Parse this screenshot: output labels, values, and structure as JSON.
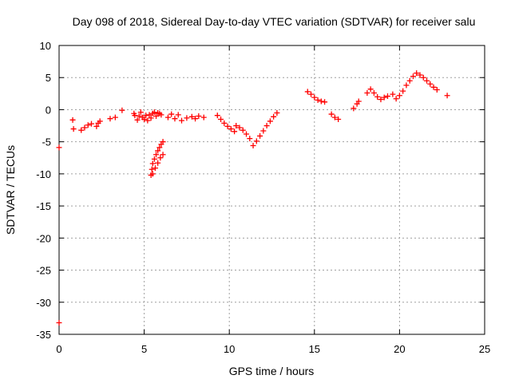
{
  "chart_data": {
    "type": "scatter",
    "title": "Day 098 of 2018, Sidereal Day-to-day VTEC variation (SDTVAR) for receiver salu",
    "xlabel": "GPS time / hours",
    "ylabel": "SDTVAR / TECUs",
    "xlim": [
      0,
      25
    ],
    "ylim": [
      -35,
      10
    ],
    "xticks": [
      "0",
      "5",
      "10",
      "15",
      "20",
      "25"
    ],
    "yticks": [
      "10",
      "5",
      "0",
      "-5",
      "-10",
      "-15",
      "-20",
      "-25",
      "-30",
      "-35"
    ],
    "grid": true,
    "marker": "plus",
    "color": "#ff0000",
    "series": [
      {
        "name": "SDTVAR",
        "points": [
          [
            0.0,
            -5.9
          ],
          [
            0.0,
            -33.2
          ],
          [
            0.8,
            -1.6
          ],
          [
            0.85,
            -3.0
          ],
          [
            1.3,
            -3.2
          ],
          [
            1.5,
            -2.8
          ],
          [
            1.7,
            -2.4
          ],
          [
            1.9,
            -2.2
          ],
          [
            2.2,
            -2.6
          ],
          [
            2.3,
            -2.1
          ],
          [
            2.4,
            -1.8
          ],
          [
            3.0,
            -1.4
          ],
          [
            3.3,
            -1.2
          ],
          [
            3.7,
            -0.1
          ],
          [
            4.4,
            -0.6
          ],
          [
            4.45,
            -0.9
          ],
          [
            4.6,
            -1.6
          ],
          [
            4.7,
            -1.0
          ],
          [
            4.8,
            -0.4
          ],
          [
            4.9,
            -1.2
          ],
          [
            5.0,
            -1.5
          ],
          [
            5.1,
            -0.9
          ],
          [
            5.2,
            -1.7
          ],
          [
            5.3,
            -0.8
          ],
          [
            5.4,
            -1.3
          ],
          [
            5.5,
            -0.6
          ],
          [
            5.6,
            -0.4
          ],
          [
            5.7,
            -1.0
          ],
          [
            5.8,
            -0.5
          ],
          [
            5.9,
            -0.6
          ],
          [
            6.0,
            -0.8
          ],
          [
            5.4,
            -10.2
          ],
          [
            5.45,
            -9.3
          ],
          [
            5.5,
            -8.4
          ],
          [
            5.6,
            -7.7
          ],
          [
            5.7,
            -7.0
          ],
          [
            5.8,
            -6.4
          ],
          [
            5.9,
            -5.9
          ],
          [
            6.0,
            -5.4
          ],
          [
            6.1,
            -5.0
          ],
          [
            5.5,
            -10.0
          ],
          [
            5.65,
            -9.1
          ],
          [
            5.8,
            -8.3
          ],
          [
            5.95,
            -7.5
          ],
          [
            6.1,
            -7.0
          ],
          [
            6.4,
            -1.2
          ],
          [
            6.6,
            -0.7
          ],
          [
            6.8,
            -1.4
          ],
          [
            7.0,
            -0.8
          ],
          [
            7.2,
            -1.7
          ],
          [
            7.5,
            -1.3
          ],
          [
            7.8,
            -1.1
          ],
          [
            8.0,
            -1.4
          ],
          [
            8.2,
            -1.0
          ],
          [
            8.5,
            -1.2
          ],
          [
            9.3,
            -0.9
          ],
          [
            9.5,
            -1.5
          ],
          [
            9.7,
            -2.1
          ],
          [
            9.9,
            -2.6
          ],
          [
            10.1,
            -3.0
          ],
          [
            10.3,
            -3.4
          ],
          [
            10.4,
            -2.5
          ],
          [
            10.6,
            -2.8
          ],
          [
            10.8,
            -3.2
          ],
          [
            11.0,
            -3.8
          ],
          [
            11.2,
            -4.5
          ],
          [
            11.4,
            -5.6
          ],
          [
            11.6,
            -4.9
          ],
          [
            11.8,
            -4.1
          ],
          [
            12.0,
            -3.3
          ],
          [
            12.2,
            -2.5
          ],
          [
            12.4,
            -1.8
          ],
          [
            12.6,
            -1.1
          ],
          [
            12.8,
            -0.5
          ],
          [
            14.6,
            2.8
          ],
          [
            14.8,
            2.4
          ],
          [
            15.0,
            1.9
          ],
          [
            15.2,
            1.5
          ],
          [
            15.4,
            1.3
          ],
          [
            15.6,
            1.2
          ],
          [
            16.0,
            -0.7
          ],
          [
            16.2,
            -1.2
          ],
          [
            16.4,
            -1.5
          ],
          [
            17.3,
            0.2
          ],
          [
            17.5,
            0.9
          ],
          [
            17.6,
            1.3
          ],
          [
            18.1,
            2.6
          ],
          [
            18.3,
            3.2
          ],
          [
            18.5,
            2.6
          ],
          [
            18.7,
            2.0
          ],
          [
            18.9,
            1.6
          ],
          [
            19.1,
            1.9
          ],
          [
            19.3,
            2.1
          ],
          [
            19.6,
            2.4
          ],
          [
            19.8,
            1.7
          ],
          [
            20.0,
            2.2
          ],
          [
            20.2,
            2.9
          ],
          [
            20.4,
            3.8
          ],
          [
            20.6,
            4.5
          ],
          [
            20.8,
            5.2
          ],
          [
            21.0,
            5.7
          ],
          [
            21.2,
            5.4
          ],
          [
            21.4,
            5.0
          ],
          [
            21.6,
            4.5
          ],
          [
            21.8,
            4.0
          ],
          [
            22.0,
            3.5
          ],
          [
            22.2,
            3.1
          ],
          [
            22.8,
            2.2
          ]
        ]
      }
    ]
  }
}
